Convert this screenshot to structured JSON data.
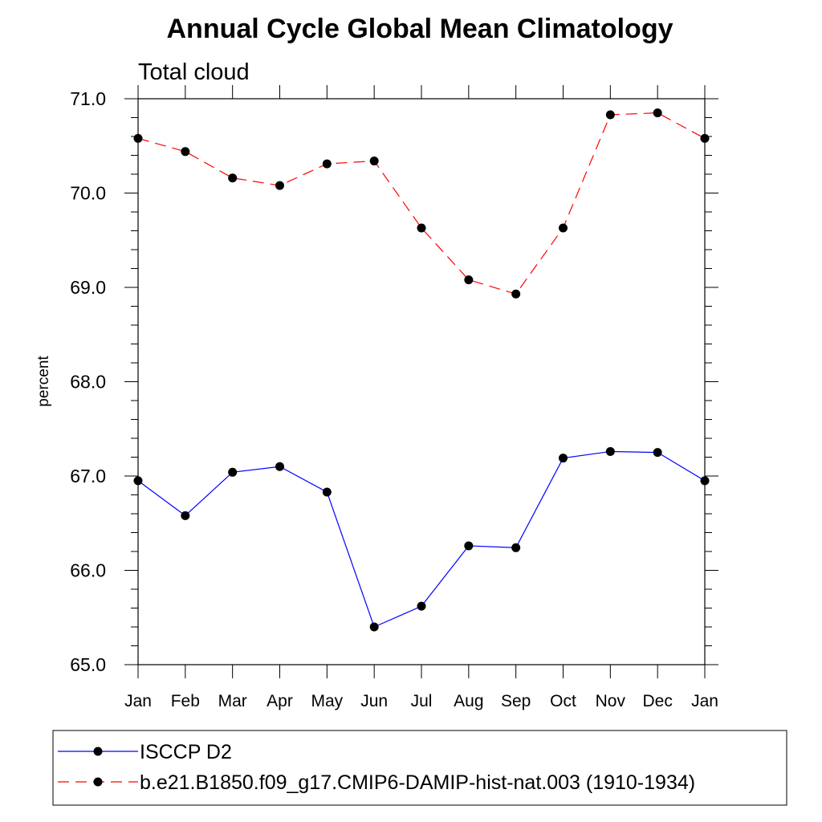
{
  "chart_data": {
    "type": "line",
    "title": "Annual Cycle Global Mean Climatology",
    "subtitle": "Total cloud",
    "ylabel": "percent",
    "xlabel": "",
    "ylim": [
      65.0,
      71.0
    ],
    "yticks": [
      "65.0",
      "66.0",
      "67.0",
      "68.0",
      "69.0",
      "70.0",
      "71.0"
    ],
    "categories": [
      "Jan",
      "Feb",
      "Mar",
      "Apr",
      "May",
      "Jun",
      "Jul",
      "Aug",
      "Sep",
      "Oct",
      "Nov",
      "Dec",
      "Jan"
    ],
    "grid": false,
    "legend_position": "bottom",
    "series": [
      {
        "name": "ISCCP D2",
        "color": "#0000ff",
        "line_style": "solid",
        "marker": "circle",
        "values": [
          66.95,
          66.58,
          67.04,
          67.1,
          66.83,
          65.4,
          65.62,
          66.26,
          66.24,
          67.19,
          67.26,
          67.25,
          66.95
        ]
      },
      {
        "name": "b.e21.B1850.f09_g17.CMIP6-DAMIP-hist-nat.003 (1910-1934)",
        "color": "#ff0000",
        "line_style": "dashed",
        "marker": "circle",
        "values": [
          70.58,
          70.44,
          70.16,
          70.08,
          70.31,
          70.34,
          69.63,
          69.08,
          68.93,
          69.63,
          70.83,
          70.85,
          70.58
        ]
      }
    ]
  }
}
